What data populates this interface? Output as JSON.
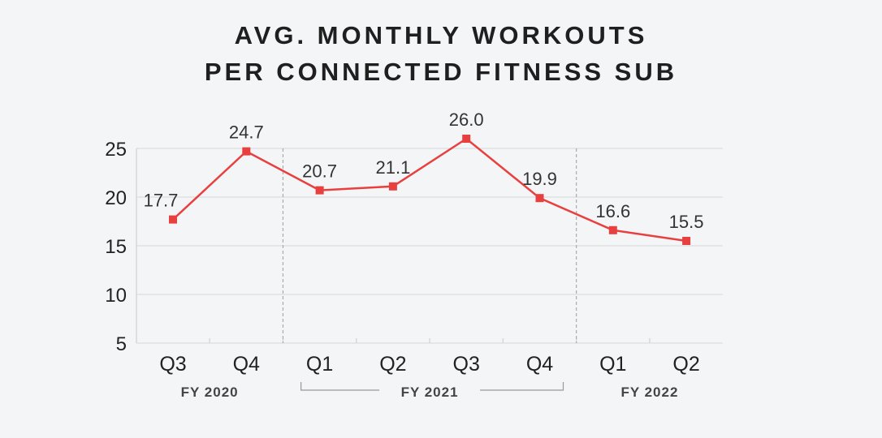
{
  "chart_data": {
    "type": "line",
    "title_lines": [
      "AVG. MONTHLY WORKOUTS",
      "PER CONNECTED FITNESS SUB"
    ],
    "categories": [
      "Q3",
      "Q4",
      "Q1",
      "Q2",
      "Q3",
      "Q4",
      "Q1",
      "Q2"
    ],
    "groups": [
      {
        "label": "FY 2020",
        "start": 0,
        "end": 1
      },
      {
        "label": "FY 2021",
        "start": 2,
        "end": 5
      },
      {
        "label": "FY 2022",
        "start": 6,
        "end": 7
      }
    ],
    "series": [
      {
        "name": "Avg. monthly workouts",
        "values": [
          17.7,
          24.7,
          20.7,
          21.1,
          26.0,
          19.9,
          16.6,
          15.5
        ],
        "labels": [
          "17.7",
          "24.7",
          "20.7",
          "21.1",
          "26.0",
          "19.9",
          "16.6",
          "15.5"
        ],
        "color": "#e8403f"
      }
    ],
    "yticks": [
      5,
      10,
      15,
      20,
      25
    ],
    "ylim": [
      5,
      25
    ],
    "grid": true
  }
}
